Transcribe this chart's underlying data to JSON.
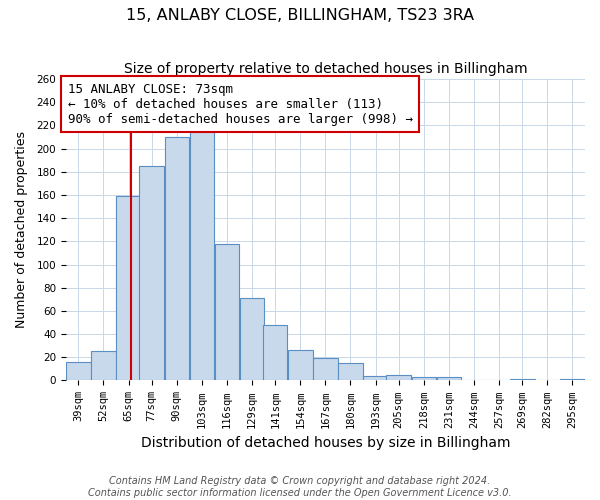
{
  "title": "15, ANLABY CLOSE, BILLINGHAM, TS23 3RA",
  "subtitle": "Size of property relative to detached houses in Billingham",
  "xlabel": "Distribution of detached houses by size in Billingham",
  "ylabel": "Number of detached properties",
  "bin_labels": [
    "39sqm",
    "52sqm",
    "65sqm",
    "77sqm",
    "90sqm",
    "103sqm",
    "116sqm",
    "129sqm",
    "141sqm",
    "154sqm",
    "167sqm",
    "180sqm",
    "193sqm",
    "205sqm",
    "218sqm",
    "231sqm",
    "244sqm",
    "257sqm",
    "269sqm",
    "282sqm",
    "295sqm"
  ],
  "bin_values": [
    16,
    25,
    159,
    185,
    210,
    215,
    118,
    71,
    48,
    26,
    19,
    15,
    4,
    5,
    3,
    3,
    0,
    0,
    1,
    0,
    1
  ],
  "bar_color": "#c9d9ec",
  "bar_edge_color": "#5a8fc3",
  "property_label": "15 ANLABY CLOSE: 73sqm",
  "annotation_line1": "← 10% of detached houses are smaller (113)",
  "annotation_line2": "90% of semi-detached houses are larger (998) →",
  "vline_color": "#cc0000",
  "vline_x": 73,
  "ylim": [
    0,
    260
  ],
  "yticks": [
    0,
    20,
    40,
    60,
    80,
    100,
    120,
    140,
    160,
    180,
    200,
    220,
    240,
    260
  ],
  "annotation_box_color": "#cc0000",
  "footer_line1": "Contains HM Land Registry data © Crown copyright and database right 2024.",
  "footer_line2": "Contains public sector information licensed under the Open Government Licence v3.0.",
  "background_color": "#ffffff",
  "grid_color": "#c8d8e8",
  "title_fontsize": 11.5,
  "subtitle_fontsize": 10,
  "xlabel_fontsize": 10,
  "ylabel_fontsize": 9,
  "tick_fontsize": 7.5,
  "footer_fontsize": 7,
  "annot_fontsize": 9
}
